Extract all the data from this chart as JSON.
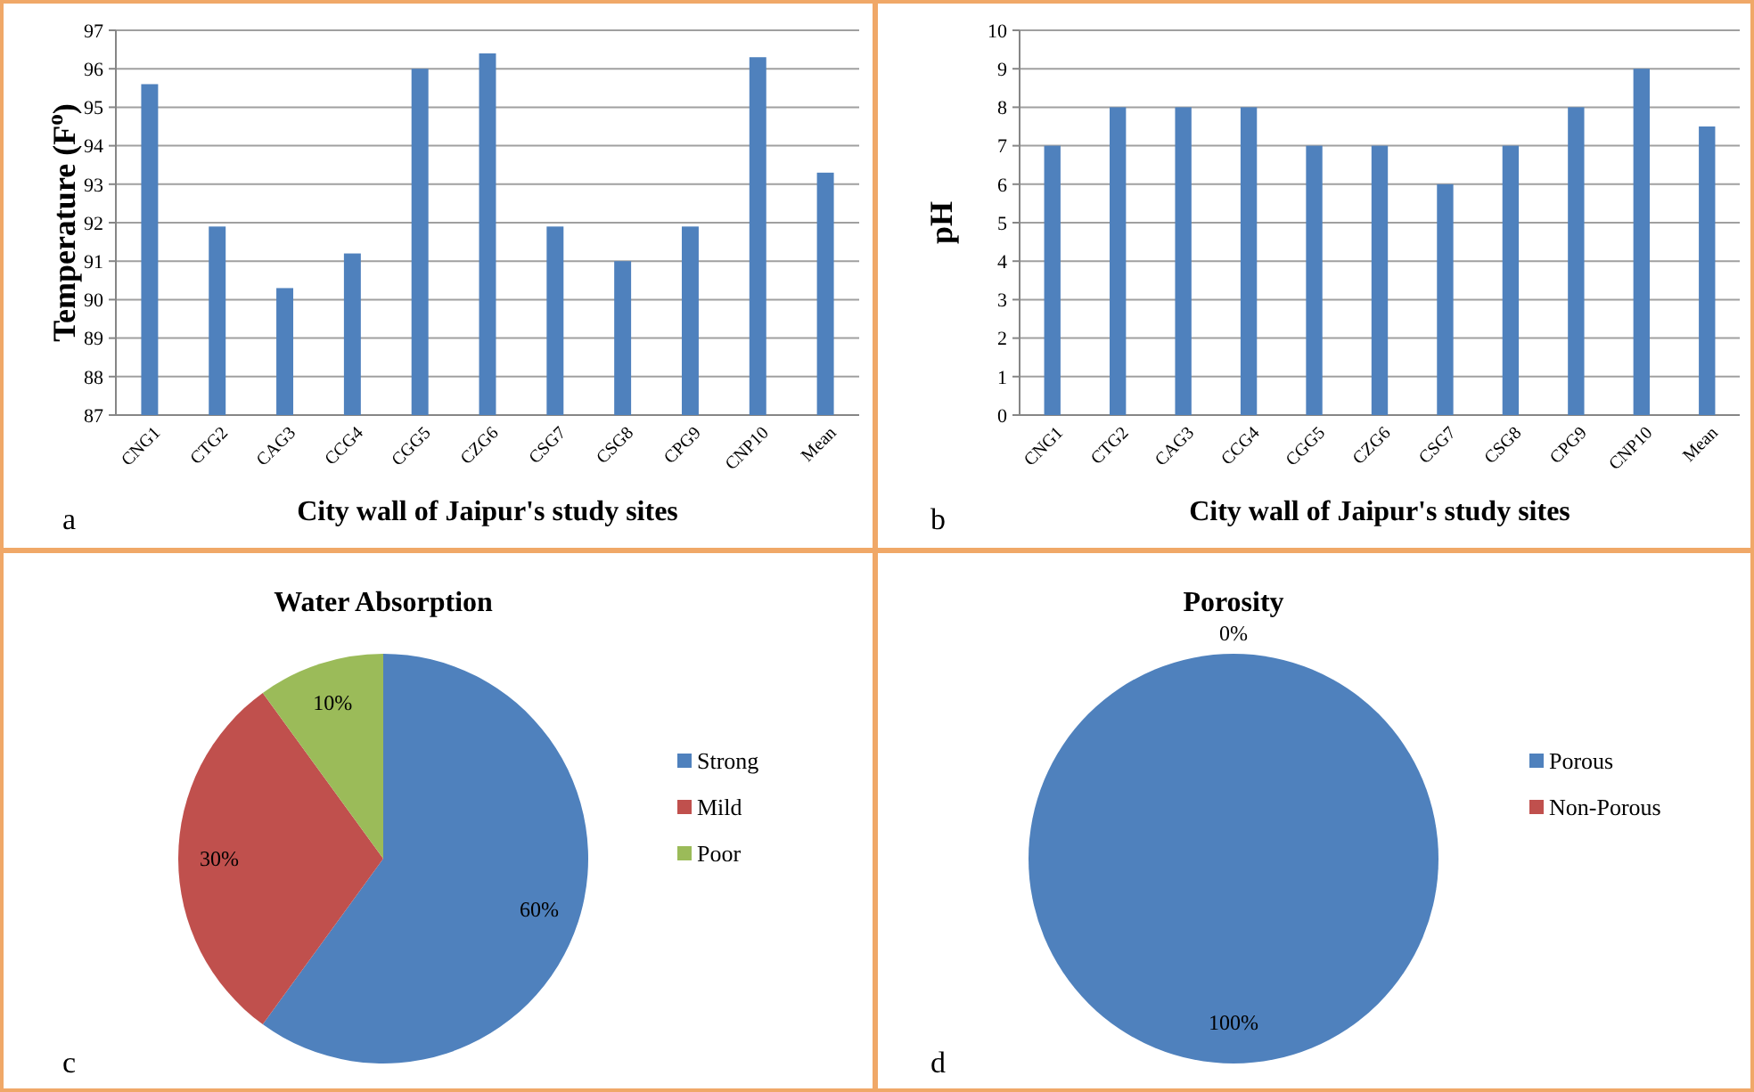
{
  "chart_data": [
    {
      "type": "bar",
      "xlabel": "City wall of Jaipur's study sites",
      "ylabel": "Temperature (F$^{o}$)",
      "categories": [
        "CNG1",
        "CTG2",
        "CAG3",
        "CCG4",
        "CGG5",
        "CZG6",
        "CSG7",
        "CSG8",
        "CPG9",
        "CNP10",
        "Mean"
      ],
      "values": [
        95.6,
        91.9,
        90.3,
        91.2,
        96.0,
        96.4,
        91.9,
        91.0,
        91.9,
        96.3,
        93.3
      ],
      "color": "#4f81bd",
      "ylim": [
        87,
        97
      ],
      "yticks": [
        87,
        88,
        89,
        90,
        91,
        92,
        93,
        94,
        95,
        96,
        97
      ],
      "grid": "y",
      "annotations": [
        "a"
      ]
    },
    {
      "type": "bar",
      "xlabel": "City wall of Jaipur's study sites",
      "ylabel": "pH",
      "categories": [
        "CNG1",
        "CTG2",
        "CAG3",
        "CCG4",
        "CGG5",
        "CZG6",
        "CSG7",
        "CSG8",
        "CPG9",
        "CNP10",
        "Mean"
      ],
      "values": [
        7,
        8,
        8,
        8,
        7,
        7,
        6,
        7,
        8,
        9,
        7.5
      ],
      "color": "#4f81bd",
      "ylim": [
        0,
        10
      ],
      "yticks": [
        0,
        1,
        2,
        3,
        4,
        5,
        6,
        7,
        8,
        9,
        10
      ],
      "grid": "y",
      "annotations": [
        "b"
      ]
    },
    {
      "type": "pie",
      "title": "Water Absorption",
      "categories": [
        "Strong",
        "Mild",
        "Poor"
      ],
      "values": [
        60,
        30,
        10
      ],
      "colors": [
        "#4f81bd",
        "#c0504d",
        "#9bbb59"
      ],
      "value_labels": [
        "60%",
        "30%",
        "10%"
      ],
      "legend": "right",
      "annotations": [
        "c"
      ]
    },
    {
      "type": "pie",
      "title": "Porosity",
      "categories": [
        "Porous",
        "Non-Porous"
      ],
      "values": [
        100,
        0
      ],
      "colors": [
        "#4f81bd",
        "#c0504d"
      ],
      "value_labels": [
        "100%",
        "0%"
      ],
      "legend": "right",
      "annotations": [
        "d"
      ]
    }
  ]
}
